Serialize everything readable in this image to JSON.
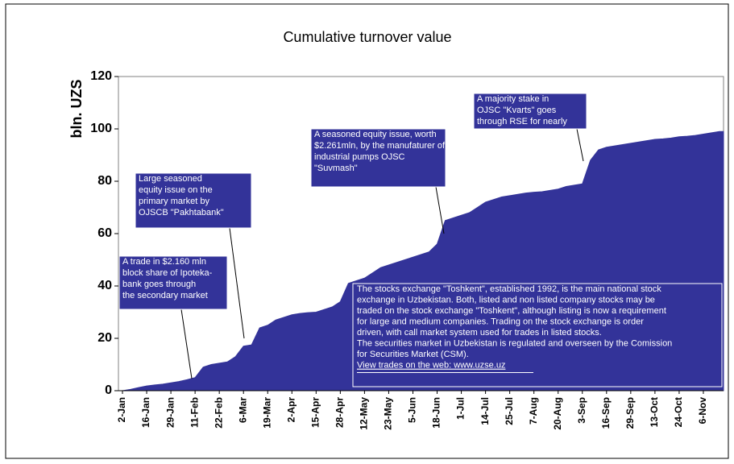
{
  "chart_data": {
    "type": "area",
    "title": "Cumulative turnover value",
    "y_label": "bln. UZS",
    "color": "#333399",
    "categories": [
      "2-Jan",
      null,
      null,
      "16-Jan",
      null,
      null,
      "29-Jan",
      null,
      null,
      "11-Feb",
      null,
      null,
      "22-Feb",
      null,
      null,
      "6-Mar",
      null,
      null,
      "19-Mar",
      null,
      null,
      "2-Apr",
      null,
      null,
      "15-Apr",
      null,
      null,
      "28-Apr",
      null,
      null,
      "12-May",
      null,
      null,
      "23-May",
      null,
      null,
      "5-Jun",
      null,
      null,
      "18-Jun",
      null,
      null,
      "1-Jul",
      null,
      null,
      "14-Jul",
      null,
      null,
      "25-Jul",
      null,
      null,
      "7-Aug",
      null,
      null,
      "20-Aug",
      null,
      null,
      "3-Sep",
      null,
      null,
      "16-Sep",
      null,
      null,
      "29-Sep",
      null,
      null,
      "13-Oct",
      null,
      null,
      "24-Oct",
      null,
      null,
      "6-Nov",
      null,
      null
    ],
    "values": [
      0,
      0.5,
      1.2,
      1.8,
      2.2,
      2.5,
      3,
      3.5,
      4.2,
      5,
      9,
      10,
      10.5,
      11,
      13,
      17,
      17.5,
      24,
      25,
      27,
      28,
      29,
      29.5,
      29.8,
      30,
      31,
      32,
      34,
      41,
      42,
      43,
      45,
      47,
      48,
      49,
      50,
      51,
      52,
      53,
      56,
      65,
      66,
      67,
      68,
      70,
      72,
      73,
      74,
      74.5,
      75,
      75.5,
      75.8,
      76,
      76.5,
      77,
      78,
      78.5,
      79,
      88,
      92,
      93,
      93.5,
      94,
      94.5,
      95,
      95.5,
      96,
      96.2,
      96.5,
      97,
      97.2,
      97.5,
      98,
      98.5,
      99
    ],
    "ylim": [
      0,
      120
    ],
    "yticks": [
      0,
      20,
      40,
      60,
      80,
      100,
      120
    ],
    "annotations": [
      {
        "lines": [
          "A trade in $2.160 mln",
          "block share of Ipoteka-",
          "bank goes through",
          "the secondary market"
        ]
      },
      {
        "lines": [
          "Large seasoned",
          "equity issue on the",
          "primary market by",
          "OJSCB \"Pakhtabank\""
        ]
      },
      {
        "lines": [
          "A seasoned equity issue, worth",
          "$2.261mln, by the manufaturer of",
          "industrial pumps OJSC",
          "\"Suvmash\""
        ]
      },
      {
        "lines": [
          "A majority stake in",
          "OJSC \"Kvarts\" goes",
          "through RSE for nearly"
        ]
      }
    ],
    "note": {
      "lines": [
        "The stocks exchange \"Toshkent\", established 1992, is the main national stock",
        "exchange in Uzbekistan.  Both, listed and non listed company stocks may be",
        "traded on the stock exchange \"Toshkent\", although listing is now a requirement",
        "for large and medium companies. Trading on the stock exchange is order",
        "driven, with  call market system used for trades in listed stocks.",
        "The securities market in Uzbekistan is regulated and overseen by the Comission",
        "for Securities Market (CSM)."
      ],
      "link": "View trades on the web: www.uzse.uz"
    }
  }
}
